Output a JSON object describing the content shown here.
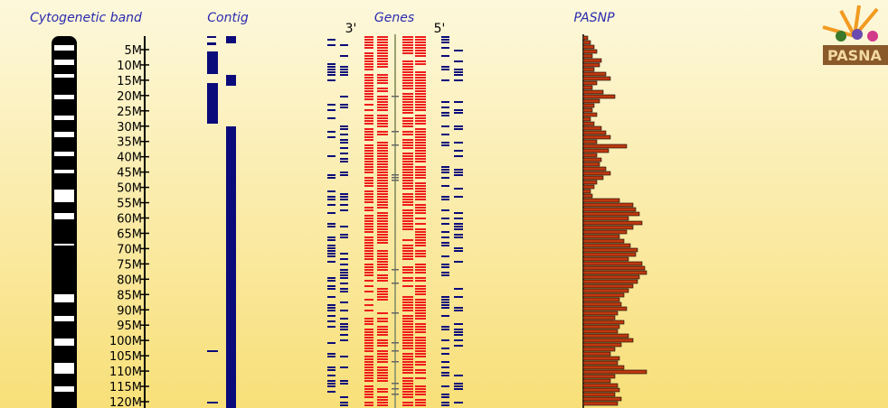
{
  "tracks": [
    "Cytogenetic band",
    "Contig",
    "Genes",
    "PASNP"
  ],
  "strands": [
    "3'",
    "5'"
  ],
  "scale": {
    "lim": [
      0,
      120
    ],
    "ticks": [
      {
        "value": 5,
        "label": "5M"
      },
      {
        "value": 10,
        "label": "10M"
      },
      {
        "value": 15,
        "label": "15M"
      },
      {
        "value": 20,
        "label": "20M"
      },
      {
        "value": 25,
        "label": "25M"
      },
      {
        "value": 30,
        "label": "30M"
      },
      {
        "value": 35,
        "label": "35M"
      },
      {
        "value": 40,
        "label": "40M"
      },
      {
        "value": 45,
        "label": "45M"
      },
      {
        "value": 50,
        "label": "50M"
      },
      {
        "value": 55,
        "label": "55M"
      },
      {
        "value": 60,
        "label": "60M"
      },
      {
        "value": 65,
        "label": "65M"
      },
      {
        "value": 70,
        "label": "70M"
      },
      {
        "value": 75,
        "label": "75M"
      },
      {
        "value": 80,
        "label": "80M"
      },
      {
        "value": 85,
        "label": "85M"
      },
      {
        "value": 90,
        "label": "90M"
      },
      {
        "value": 95,
        "label": "95M"
      },
      {
        "value": 100,
        "label": "100M"
      },
      {
        "value": 105,
        "label": "105M"
      },
      {
        "value": 110,
        "label": "110M"
      },
      {
        "value": 115,
        "label": "115M"
      },
      {
        "value": 120,
        "label": "120M"
      }
    ]
  },
  "pasnp": {
    "color": "#c0390f",
    "values": [
      5,
      8,
      12,
      15,
      10,
      20,
      18,
      12,
      25,
      30,
      15,
      10,
      22,
      35,
      18,
      12,
      10,
      15,
      8,
      12,
      20,
      25,
      30,
      15,
      48,
      28,
      15,
      20,
      18,
      25,
      30,
      22,
      15,
      12,
      8,
      10,
      40,
      55,
      58,
      62,
      50,
      65,
      55,
      48,
      40,
      45,
      52,
      60,
      58,
      50,
      65,
      68,
      70,
      62,
      60,
      55,
      50,
      45,
      40,
      42,
      48,
      38,
      35,
      45,
      40,
      38,
      50,
      55,
      42,
      35,
      30,
      40,
      38,
      45,
      70,
      35,
      30,
      38,
      40,
      35,
      42,
      38
    ]
  },
  "logo": "PASNA"
}
